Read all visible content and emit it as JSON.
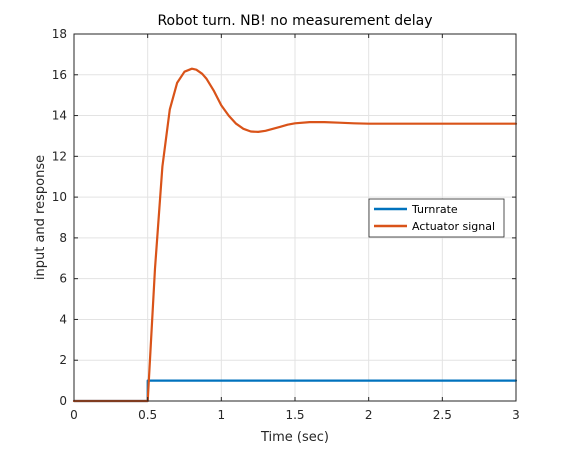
{
  "chart_data": {
    "type": "line",
    "title": "Robot turn. NB! no measurement delay",
    "xlabel": "Time (sec)",
    "ylabel": "input and response",
    "xlim": [
      0,
      3
    ],
    "ylim": [
      0,
      18
    ],
    "xticks": [
      0,
      0.5,
      1,
      1.5,
      2,
      2.5,
      3
    ],
    "xtick_labels": [
      "0",
      "0.5",
      "1",
      "1.5",
      "2",
      "2.5",
      "3"
    ],
    "yticks": [
      0,
      2,
      4,
      6,
      8,
      10,
      12,
      14,
      16,
      18
    ],
    "ytick_labels": [
      "0",
      "2",
      "4",
      "6",
      "8",
      "10",
      "12",
      "14",
      "16",
      "18"
    ],
    "grid": true,
    "legend_position": "right",
    "series": [
      {
        "name": "Turnrate",
        "color": "#0072BD",
        "x": [
          0,
          0.5,
          0.5,
          3
        ],
        "y": [
          0,
          0,
          1,
          1
        ]
      },
      {
        "name": "Actuator signal",
        "color": "#D95319",
        "x": [
          0,
          0.5,
          0.55,
          0.6,
          0.65,
          0.7,
          0.75,
          0.8,
          0.83,
          0.87,
          0.9,
          0.95,
          1.0,
          1.05,
          1.1,
          1.15,
          1.2,
          1.25,
          1.3,
          1.35,
          1.4,
          1.45,
          1.5,
          1.6,
          1.7,
          1.8,
          1.9,
          2.0,
          2.2,
          2.4,
          2.6,
          2.8,
          3.0
        ],
        "y": [
          0,
          0,
          6.5,
          11.5,
          14.3,
          15.6,
          16.15,
          16.3,
          16.25,
          16.05,
          15.8,
          15.2,
          14.5,
          14.0,
          13.6,
          13.35,
          13.22,
          13.2,
          13.25,
          13.35,
          13.45,
          13.55,
          13.62,
          13.68,
          13.68,
          13.65,
          13.62,
          13.6,
          13.6,
          13.6,
          13.6,
          13.6,
          13.6
        ]
      }
    ]
  }
}
